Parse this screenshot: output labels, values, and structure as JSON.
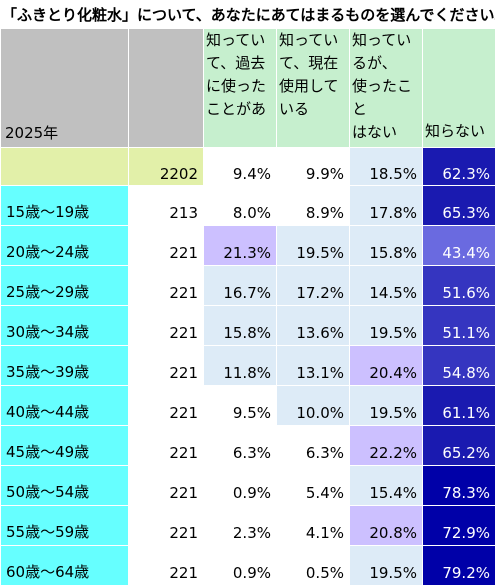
{
  "title": "「ふきとり化粧水」について、あなたにあてはまるものを選んでください。",
  "colors": {
    "header_gray": "#c0c0c0",
    "option_green": "#c6efce",
    "total_row": "#e2f0a9",
    "age_label": "#66ffff",
    "low": "#ffffff",
    "light_blue": "#ddebf7",
    "lavender": "#ccc0ff",
    "medium_blue": "#4040c8",
    "dark_blue": "#0000a8"
  },
  "chart_data": {
    "type": "table",
    "year_label": "2025年",
    "columns": [
      "知ってい て、過去 に使った ことがあ",
      "知ってい て、現在 使用して いる",
      "知ってい るが、 使ったこと はない",
      "知らない"
    ],
    "column_lines": [
      [
        "知ってい",
        "て、過去",
        "に使った",
        "ことがあ"
      ],
      [
        "知ってい",
        "て、現在",
        "使用して",
        "いる"
      ],
      [
        "知ってい",
        "るが、",
        "使ったこと",
        "はない"
      ],
      [
        "知らない"
      ]
    ],
    "total": {
      "n": "2202",
      "values": [
        "9.4%",
        "9.9%",
        "18.5%",
        "62.3%"
      ]
    },
    "rows": [
      {
        "label": "15歳～19歳",
        "n": "213",
        "values": [
          "8.0%",
          "8.9%",
          "17.8%",
          "65.3%"
        ]
      },
      {
        "label": "20歳～24歳",
        "n": "221",
        "values": [
          "21.3%",
          "19.5%",
          "15.8%",
          "43.4%"
        ]
      },
      {
        "label": "25歳～29歳",
        "n": "221",
        "values": [
          "16.7%",
          "17.2%",
          "14.5%",
          "51.6%"
        ]
      },
      {
        "label": "30歳～34歳",
        "n": "221",
        "values": [
          "15.8%",
          "13.6%",
          "19.5%",
          "51.1%"
        ]
      },
      {
        "label": "35歳～39歳",
        "n": "221",
        "values": [
          "11.8%",
          "13.1%",
          "20.4%",
          "54.8%"
        ]
      },
      {
        "label": "40歳～44歳",
        "n": "221",
        "values": [
          "9.5%",
          "10.0%",
          "19.5%",
          "61.1%"
        ]
      },
      {
        "label": "45歳～49歳",
        "n": "221",
        "values": [
          "6.3%",
          "6.3%",
          "22.2%",
          "65.2%"
        ]
      },
      {
        "label": "50歳～54歳",
        "n": "221",
        "values": [
          "0.9%",
          "5.4%",
          "15.4%",
          "78.3%"
        ]
      },
      {
        "label": "55歳～59歳",
        "n": "221",
        "values": [
          "2.3%",
          "4.1%",
          "20.8%",
          "72.9%"
        ]
      },
      {
        "label": "60歳～64歳",
        "n": "221",
        "values": [
          "0.9%",
          "0.5%",
          "19.5%",
          "79.2%"
        ]
      }
    ]
  }
}
